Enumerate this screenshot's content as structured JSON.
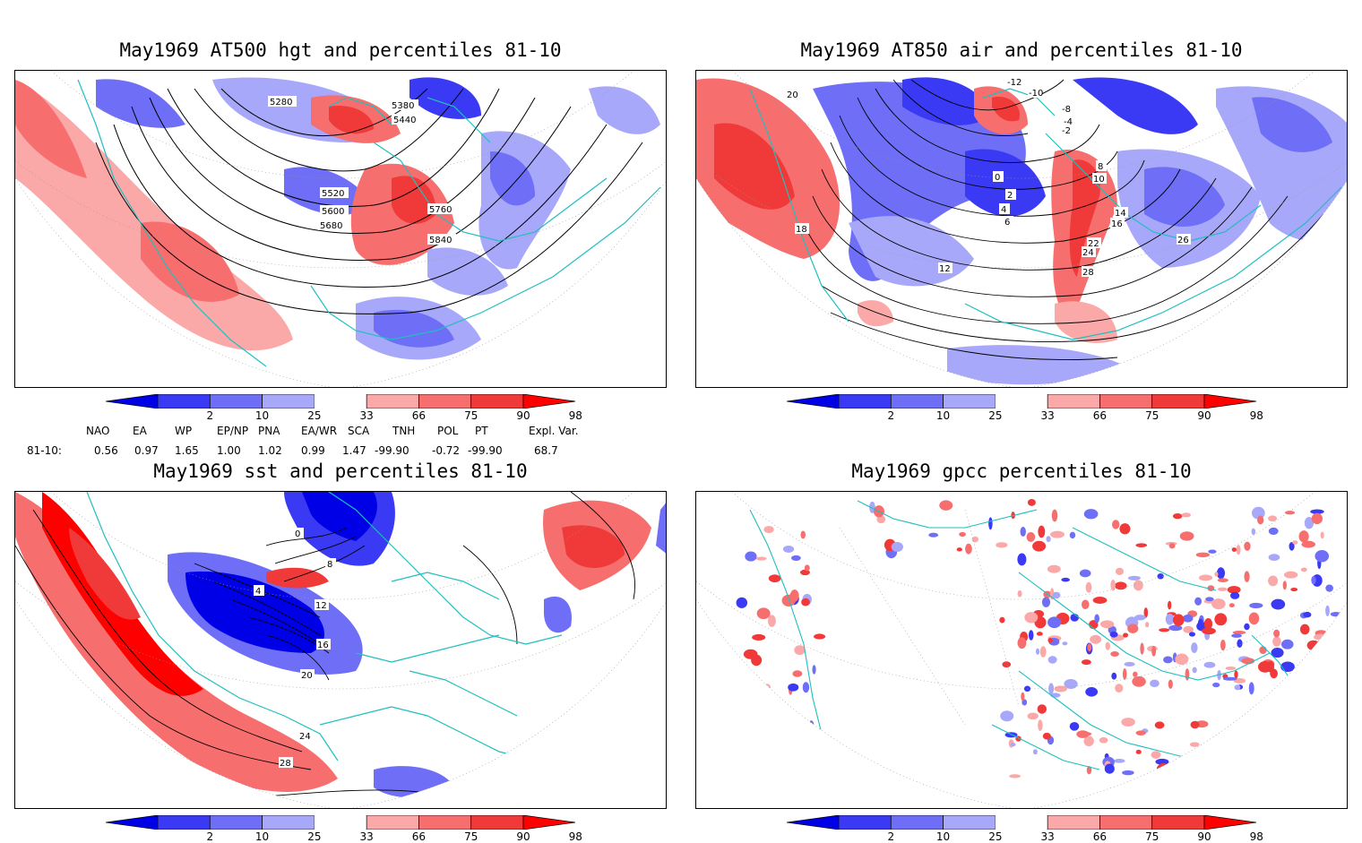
{
  "panels": [
    {
      "title": "May1969 AT500 hgt and percentiles 81-10",
      "contour_labels": [
        "5280",
        "5380",
        "5440",
        "5520",
        "5600",
        "5680",
        "5760",
        "5840"
      ]
    },
    {
      "title": "May1969 AT850 air and percentiles 81-10",
      "contour_labels": [
        "-12",
        "-10",
        "-8",
        "-4",
        "-2",
        "0",
        "2",
        "4",
        "6",
        "8",
        "10",
        "12",
        "14",
        "16",
        "18",
        "20",
        "22",
        "24",
        "26",
        "28"
      ]
    },
    {
      "title": "May1969 sst and percentiles 81-10",
      "contour_labels": [
        "0",
        "4",
        "8",
        "12",
        "16",
        "20",
        "24",
        "28"
      ]
    },
    {
      "title": "May1969 gpcc percentiles 81-10",
      "contour_labels": []
    }
  ],
  "colorbar": {
    "labels": [
      "2",
      "10",
      "25",
      "33",
      "66",
      "75",
      "90",
      "98"
    ],
    "colors": [
      "#0000e6",
      "#3a3af5",
      "#6e6ef7",
      "#a8a8fa",
      "#ffffff",
      "#fba8a8",
      "#f66e6e",
      "#f03a3a",
      "#ff0000"
    ]
  },
  "teleconnection": {
    "headers": [
      "NAO",
      "EA",
      "WP",
      "EP/NP",
      "PNA",
      "EA/WR",
      "SCA",
      "TNH",
      "POL",
      "PT",
      "Expl. Var."
    ],
    "row_label": "81-10:",
    "values": [
      "0.56",
      "0.97",
      "1.65",
      "1.00",
      "1.02",
      "0.99",
      "1.47",
      "-99.90",
      "-0.72",
      "-99.90",
      "68.7"
    ]
  },
  "colors": {
    "coast": "#1fbfbf",
    "positive": "#f03a3a",
    "negative": "#3a3af5"
  }
}
